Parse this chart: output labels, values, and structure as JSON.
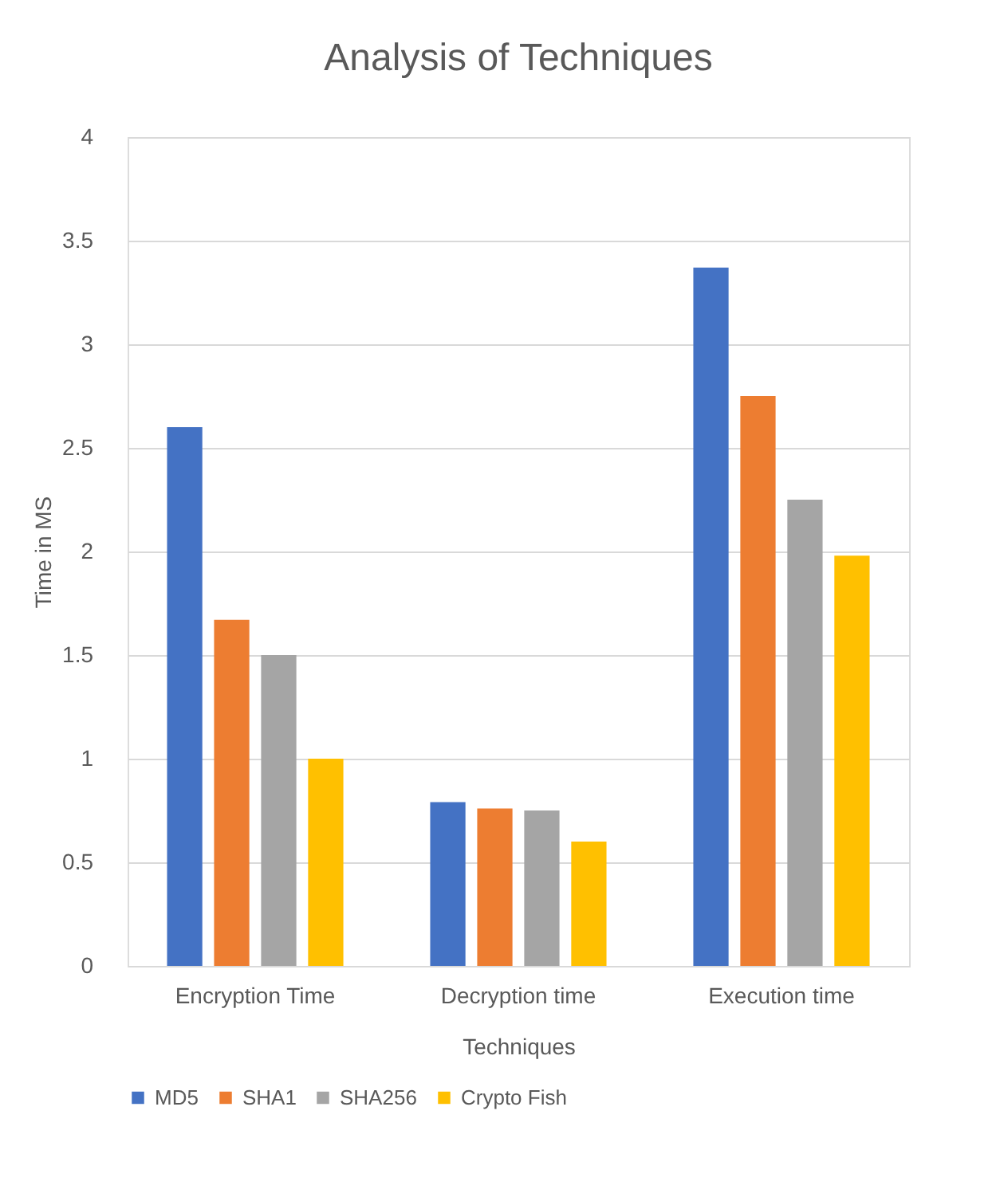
{
  "chart_data": {
    "type": "bar",
    "title": "Analysis of Techniques",
    "xlabel": "Techniques",
    "ylabel": "Time in MS",
    "categories": [
      "Encryption Time",
      "Decryption time",
      "Execution time"
    ],
    "series": [
      {
        "name": "MD5",
        "color": "#4472c4",
        "values": [
          2.6,
          0.79,
          3.37
        ]
      },
      {
        "name": "SHA1",
        "color": "#ed7d31",
        "values": [
          1.67,
          0.76,
          2.75
        ]
      },
      {
        "name": "SHA256",
        "color": "#a5a5a5",
        "values": [
          1.5,
          0.75,
          2.25
        ]
      },
      {
        "name": "Crypto Fish",
        "color": "#ffc000",
        "values": [
          1.0,
          0.6,
          1.98
        ]
      }
    ],
    "ylim": [
      0,
      4
    ],
    "yticks": [
      0,
      0.5,
      1,
      1.5,
      2,
      2.5,
      3,
      3.5,
      4
    ],
    "grid": "y",
    "legend": "bottom"
  }
}
